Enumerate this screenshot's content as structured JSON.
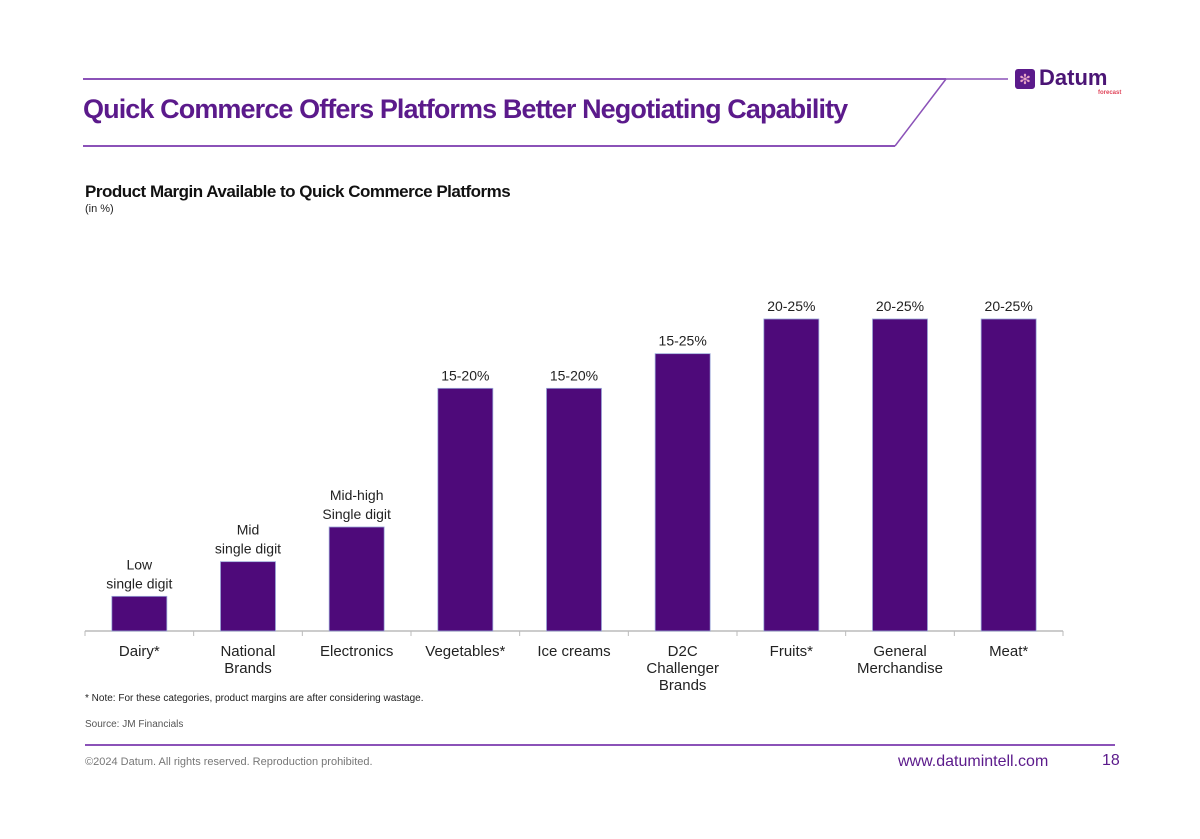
{
  "header": {
    "title": "Quick Commerce Offers Platforms Better Negotiating Capability",
    "logo_text": "Datum",
    "logo_subtext": "forecast",
    "logo_icon": "asterisk-flower-icon",
    "accent_color": "#5b1a8b"
  },
  "chart_data": {
    "type": "bar",
    "title": "Product Margin Available to Quick Commerce Platforms",
    "subtitle": "(in %)",
    "xlabel": "",
    "ylabel": "",
    "categories": [
      [
        "Dairy*"
      ],
      [
        "National",
        "Brands"
      ],
      [
        "Electronics"
      ],
      [
        "Vegetables*"
      ],
      [
        "Ice creams"
      ],
      [
        "D2C",
        "Challenger",
        "Brands"
      ],
      [
        "Fruits*"
      ],
      [
        "General",
        "Merchandise"
      ],
      [
        "Meat*"
      ]
    ],
    "data_labels": [
      [
        "Low",
        "single digit"
      ],
      [
        "Mid",
        "single digit"
      ],
      [
        "Mid-high",
        "Single digit"
      ],
      [
        "15-20%"
      ],
      [
        "15-20%"
      ],
      [
        "15-25%"
      ],
      [
        "20-25%"
      ],
      [
        "20-25%"
      ],
      [
        "20-25%"
      ]
    ],
    "values": [
      2.5,
      5,
      7.5,
      17.5,
      17.5,
      20,
      22.5,
      22.5,
      22.5
    ],
    "ylim": [
      0,
      25
    ],
    "bar_color": "#4e0a7a",
    "grid": false,
    "legend": "none"
  },
  "footnotes": {
    "note": "* Note: For these categories, product margins are after considering wastage.",
    "source": "Source: JM Financials"
  },
  "footer": {
    "copyright": "©2024 Datum. All rights reserved. Reproduction prohibited.",
    "website": "www.datumintell.com",
    "page_number": "18"
  }
}
